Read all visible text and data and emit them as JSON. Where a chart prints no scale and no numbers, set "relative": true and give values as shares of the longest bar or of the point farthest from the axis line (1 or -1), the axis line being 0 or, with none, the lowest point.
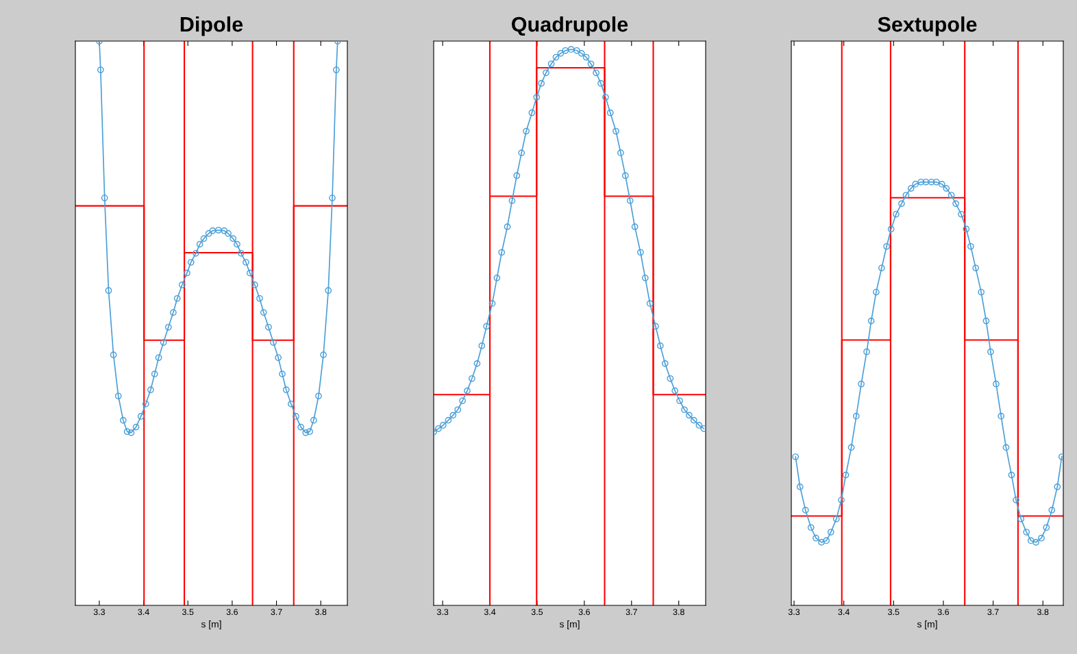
{
  "chart_data": [
    {
      "type": "line",
      "title": "Dipole",
      "xlabel": "s [m]",
      "relative": true,
      "tick_labels": "x",
      "grid": false,
      "legend": false,
      "xlim": [
        3.246,
        3.86
      ],
      "xticks": [
        3.3,
        3.4,
        3.5,
        3.6,
        3.7,
        3.8
      ],
      "series": [
        {
          "color": "#4a9fd8",
          "marker": "circle",
          "x": [
            3.3,
            3.303,
            3.312,
            3.321,
            3.332,
            3.343,
            3.354,
            3.363,
            3.372,
            3.383,
            3.394,
            3.405,
            3.416,
            3.425,
            3.434,
            3.445,
            3.456,
            3.467,
            3.476,
            3.487,
            3.498,
            3.507,
            3.518,
            3.527,
            3.536,
            3.547,
            3.556,
            3.569,
            3.582,
            3.591,
            3.602,
            3.611,
            3.62,
            3.631,
            3.64,
            3.651,
            3.662,
            3.671,
            3.682,
            3.693,
            3.704,
            3.713,
            3.722,
            3.733,
            3.744,
            3.755,
            3.766,
            3.775,
            3.784,
            3.795,
            3.806,
            3.817,
            3.826,
            3.835,
            3.838
          ],
          "values": [
            1.0,
            0.949,
            0.722,
            0.558,
            0.444,
            0.371,
            0.328,
            0.308,
            0.306,
            0.316,
            0.335,
            0.357,
            0.382,
            0.41,
            0.439,
            0.466,
            0.493,
            0.519,
            0.544,
            0.568,
            0.589,
            0.608,
            0.624,
            0.64,
            0.65,
            0.659,
            0.664,
            0.665,
            0.664,
            0.659,
            0.65,
            0.64,
            0.624,
            0.608,
            0.589,
            0.568,
            0.544,
            0.519,
            0.493,
            0.466,
            0.439,
            0.41,
            0.382,
            0.357,
            0.335,
            0.316,
            0.306,
            0.308,
            0.328,
            0.371,
            0.444,
            0.558,
            0.722,
            0.949,
            1.0
          ]
        },
        {
          "type": "step",
          "color": "#ff0000",
          "marker": "none",
          "x": [
            3.246,
            3.401,
            3.492,
            3.646,
            3.739,
            3.86
          ],
          "values": [
            0.708,
            0.47,
            0.625,
            0.47,
            0.708,
            0.708
          ]
        }
      ],
      "ref_lines": [
        {
          "axis": "x",
          "value": 3.401,
          "color": "#ff0000"
        },
        {
          "axis": "x",
          "value": 3.492,
          "color": "#ff0000"
        },
        {
          "axis": "x",
          "value": 3.646,
          "color": "#ff0000"
        },
        {
          "axis": "x",
          "value": 3.739,
          "color": "#ff0000"
        }
      ]
    },
    {
      "type": "line",
      "title": "Quadrupole",
      "xlabel": "s [m]",
      "relative": true,
      "ylim": [
        0,
        1.015
      ],
      "tick_labels": "x",
      "grid": false,
      "legend": false,
      "xlim": [
        3.281,
        3.857
      ],
      "xticks": [
        3.3,
        3.4,
        3.5,
        3.6,
        3.7,
        3.8
      ],
      "series": [
        {
          "color": "#4a9fd8",
          "marker": "circle",
          "x": [
            3.281,
            3.291,
            3.301,
            3.312,
            3.322,
            3.332,
            3.342,
            3.352,
            3.362,
            3.373,
            3.383,
            3.393,
            3.405,
            3.415,
            3.425,
            3.437,
            3.447,
            3.457,
            3.467,
            3.477,
            3.489,
            3.499,
            3.509,
            3.519,
            3.53,
            3.54,
            3.55,
            3.56,
            3.572,
            3.584,
            3.594,
            3.604,
            3.614,
            3.625,
            3.635,
            3.645,
            3.655,
            3.667,
            3.677,
            3.687,
            3.697,
            3.707,
            3.719,
            3.729,
            3.739,
            3.751,
            3.761,
            3.771,
            3.782,
            3.792,
            3.802,
            3.812,
            3.822,
            3.832,
            3.843,
            3.853
          ],
          "values": [
            0.312,
            0.318,
            0.324,
            0.333,
            0.342,
            0.352,
            0.368,
            0.386,
            0.408,
            0.435,
            0.467,
            0.502,
            0.543,
            0.589,
            0.635,
            0.681,
            0.728,
            0.773,
            0.814,
            0.853,
            0.886,
            0.914,
            0.939,
            0.958,
            0.974,
            0.986,
            0.993,
            0.998,
            1.0,
            0.998,
            0.993,
            0.986,
            0.974,
            0.958,
            0.939,
            0.914,
            0.886,
            0.853,
            0.814,
            0.773,
            0.728,
            0.681,
            0.635,
            0.589,
            0.543,
            0.502,
            0.467,
            0.435,
            0.408,
            0.386,
            0.368,
            0.352,
            0.342,
            0.333,
            0.324,
            0.318
          ]
        },
        {
          "type": "step",
          "color": "#ff0000",
          "marker": "none",
          "x": [
            3.281,
            3.4,
            3.499,
            3.643,
            3.746,
            3.857
          ],
          "values": [
            0.379,
            0.736,
            0.967,
            0.736,
            0.379,
            0.379
          ]
        }
      ],
      "ref_lines": [
        {
          "axis": "x",
          "value": 3.4,
          "color": "#ff0000"
        },
        {
          "axis": "x",
          "value": 3.499,
          "color": "#ff0000"
        },
        {
          "axis": "x",
          "value": 3.643,
          "color": "#ff0000"
        },
        {
          "axis": "x",
          "value": 3.746,
          "color": "#ff0000"
        }
      ]
    },
    {
      "type": "line",
      "title": "Sextupole",
      "xlabel": "s [m]",
      "relative": true,
      "ylim": [
        0,
        1.333
      ],
      "tick_labels": "x",
      "grid": false,
      "legend": false,
      "xlim": [
        3.2945,
        3.841
      ],
      "xticks": [
        3.3,
        3.4,
        3.5,
        3.6,
        3.7,
        3.8
      ],
      "series": [
        {
          "color": "#4a9fd8",
          "marker": "circle",
          "x": [
            3.303,
            3.312,
            3.323,
            3.334,
            3.344,
            3.355,
            3.365,
            3.374,
            3.385,
            3.395,
            3.404,
            3.415,
            3.425,
            3.435,
            3.446,
            3.455,
            3.465,
            3.476,
            3.486,
            3.495,
            3.505,
            3.516,
            3.525,
            3.535,
            3.544,
            3.555,
            3.565,
            3.576,
            3.586,
            3.597,
            3.606,
            3.616,
            3.625,
            3.636,
            3.646,
            3.655,
            3.665,
            3.676,
            3.686,
            3.695,
            3.706,
            3.716,
            3.726,
            3.737,
            3.746,
            3.756,
            3.767,
            3.776,
            3.786,
            3.797,
            3.807,
            3.818,
            3.829,
            3.838
          ],
          "values": [
            0.351,
            0.28,
            0.225,
            0.184,
            0.159,
            0.149,
            0.153,
            0.173,
            0.204,
            0.249,
            0.308,
            0.373,
            0.447,
            0.523,
            0.599,
            0.672,
            0.74,
            0.797,
            0.848,
            0.889,
            0.924,
            0.949,
            0.969,
            0.985,
            0.995,
            1.0,
            1.0,
            1.0,
            1.0,
            0.995,
            0.985,
            0.969,
            0.949,
            0.924,
            0.889,
            0.848,
            0.797,
            0.74,
            0.672,
            0.599,
            0.523,
            0.447,
            0.373,
            0.308,
            0.249,
            0.204,
            0.173,
            0.153,
            0.149,
            0.159,
            0.184,
            0.225,
            0.28,
            0.351
          ]
        },
        {
          "type": "step",
          "color": "#ff0000",
          "marker": "none",
          "x": [
            3.2945,
            3.396,
            3.494,
            3.643,
            3.75,
            3.841
          ],
          "values": [
            0.211,
            0.627,
            0.963,
            0.627,
            0.211,
            0.211
          ]
        }
      ],
      "ref_lines": [
        {
          "axis": "x",
          "value": 3.396,
          "color": "#ff0000"
        },
        {
          "axis": "x",
          "value": 3.494,
          "color": "#ff0000"
        },
        {
          "axis": "x",
          "value": 3.643,
          "color": "#ff0000"
        },
        {
          "axis": "x",
          "value": 3.75,
          "color": "#ff0000"
        }
      ]
    }
  ]
}
